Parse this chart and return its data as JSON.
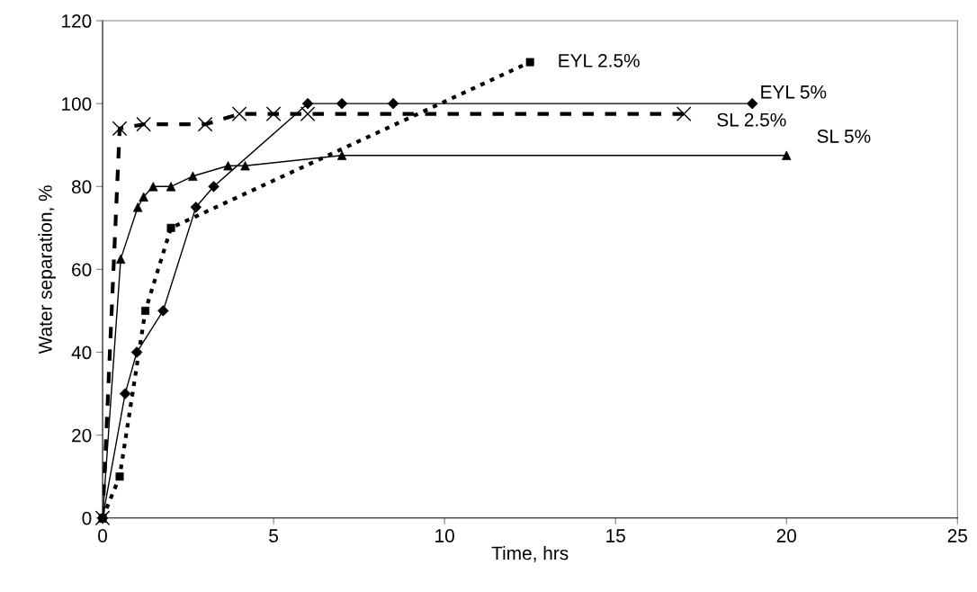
{
  "chart_data": {
    "type": "line",
    "xlabel": "Time, hrs",
    "ylabel": "Water separation, %",
    "xlim": [
      0,
      25
    ],
    "xticks": [
      0,
      5,
      10,
      15,
      20,
      25
    ],
    "ylim": [
      0,
      120
    ],
    "yticks": [
      0,
      20,
      40,
      60,
      80,
      100,
      120
    ],
    "grid": false,
    "series": [
      {
        "name": "EYL 2.5%",
        "color": "#000000",
        "marker": "square",
        "line_style": "dotted",
        "x": [
          0,
          0.5,
          1.25,
          2,
          12.5
        ],
        "values": [
          0,
          10,
          50,
          70,
          110
        ]
      },
      {
        "name": "EYL 5%",
        "color": "#000000",
        "marker": "diamond",
        "line_style": "solid",
        "x": [
          0,
          0.66,
          1,
          1.77,
          2.73,
          3.25,
          6,
          7,
          8.5,
          19
        ],
        "values": [
          0,
          30,
          40,
          50,
          75,
          80,
          100,
          100,
          100,
          100
        ]
      },
      {
        "name": "SL 2.5%",
        "color": "#000000",
        "marker": "cross",
        "line_style": "dashed",
        "x": [
          0,
          0.5,
          1.2,
          3,
          4,
          5,
          6,
          17
        ],
        "values": [
          0,
          94,
          95,
          95,
          97.5,
          97.5,
          97.5,
          97.5
        ]
      },
      {
        "name": "SL 5%",
        "color": "#000000",
        "marker": "triangle",
        "line_style": "solid",
        "x": [
          0,
          0.53,
          1.03,
          1.2,
          1.48,
          2,
          2.64,
          3.67,
          4.17,
          7,
          20
        ],
        "values": [
          0,
          62.5,
          75,
          77.5,
          80,
          80,
          82.5,
          85,
          85,
          87.5,
          87.5
        ]
      }
    ]
  }
}
